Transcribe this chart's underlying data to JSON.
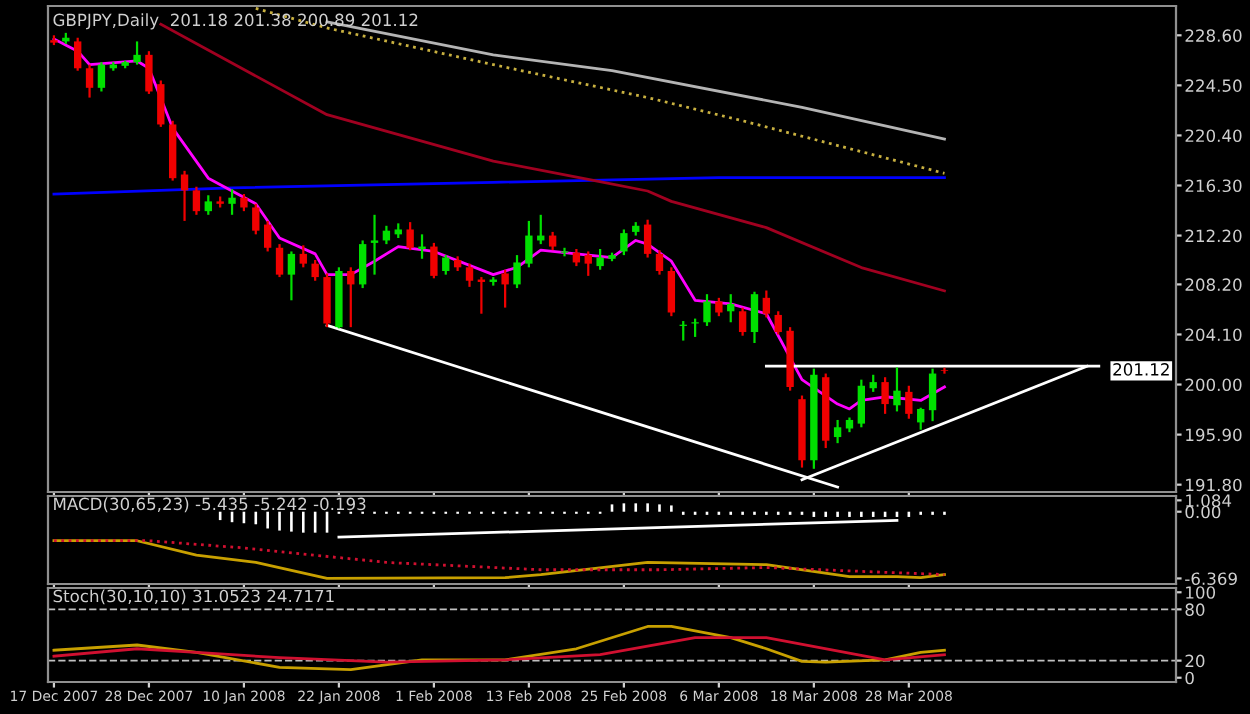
{
  "chart_data": [
    {
      "type": "candlestick",
      "title": "GBPJPY,Daily  201.18 201.38 200.89 201.12",
      "tick_labels": "y",
      "ohlc": [
        [
          228.2,
          228.6,
          227.8,
          228.0
        ],
        [
          228.1,
          228.8,
          227.9,
          228.4
        ],
        [
          228.1,
          228.4,
          225.7,
          225.9
        ],
        [
          225.9,
          226.2,
          223.5,
          224.3
        ],
        [
          224.3,
          226.4,
          224.0,
          226.2
        ],
        [
          225.9,
          226.4,
          225.7,
          226.2
        ],
        [
          226.1,
          226.5,
          225.9,
          226.4
        ],
        [
          226.4,
          228.1,
          226.2,
          227.0
        ],
        [
          227.0,
          227.3,
          223.8,
          224.0
        ],
        [
          224.6,
          224.9,
          221.1,
          221.3
        ],
        [
          221.3,
          221.6,
          216.7,
          216.9
        ],
        [
          217.2,
          217.5,
          213.4,
          215.9
        ],
        [
          215.9,
          216.2,
          213.9,
          214.2
        ],
        [
          214.2,
          215.5,
          213.9,
          215.0
        ],
        [
          215.0,
          215.4,
          214.5,
          214.8
        ],
        [
          214.8,
          216.0,
          213.9,
          215.3
        ],
        [
          215.3,
          215.6,
          214.2,
          214.5
        ],
        [
          214.5,
          214.8,
          212.3,
          212.6
        ],
        [
          213.1,
          213.4,
          210.9,
          211.2
        ],
        [
          211.2,
          211.5,
          208.8,
          209.0
        ],
        [
          209.0,
          210.9,
          206.9,
          210.7
        ],
        [
          210.7,
          211.4,
          209.6,
          209.9
        ],
        [
          209.9,
          210.2,
          208.5,
          208.8
        ],
        [
          208.8,
          209.1,
          204.7,
          205.0
        ],
        [
          204.7,
          209.6,
          204.6,
          209.3
        ],
        [
          209.3,
          209.6,
          204.7,
          208.2
        ],
        [
          208.2,
          211.8,
          207.9,
          211.5
        ],
        [
          211.6,
          213.9,
          209.0,
          211.8
        ],
        [
          211.8,
          213.0,
          211.5,
          212.6
        ],
        [
          212.3,
          213.2,
          212.0,
          212.7
        ],
        [
          212.7,
          213.3,
          211.0,
          211.2
        ],
        [
          211.1,
          212.3,
          210.3,
          211.3
        ],
        [
          211.3,
          211.6,
          208.7,
          208.9
        ],
        [
          209.3,
          210.6,
          209.0,
          210.4
        ],
        [
          210.2,
          210.5,
          209.3,
          209.6
        ],
        [
          209.6,
          209.9,
          208.0,
          208.5
        ],
        [
          208.6,
          208.8,
          205.8,
          208.4
        ],
        [
          208.4,
          208.8,
          208.1,
          208.6
        ],
        [
          209.1,
          209.4,
          206.3,
          208.2
        ],
        [
          208.2,
          210.6,
          207.9,
          210.0
        ],
        [
          209.9,
          213.4,
          209.6,
          212.2
        ],
        [
          211.8,
          213.9,
          211.5,
          212.2
        ],
        [
          212.2,
          212.5,
          211.0,
          211.3
        ],
        [
          210.8,
          211.2,
          210.5,
          210.9
        ],
        [
          210.8,
          211.1,
          209.7,
          210.0
        ],
        [
          210.6,
          210.9,
          208.9,
          209.9
        ],
        [
          209.7,
          211.1,
          209.4,
          210.4
        ],
        [
          210.3,
          210.8,
          210.1,
          210.6
        ],
        [
          210.9,
          212.7,
          210.6,
          212.4
        ],
        [
          212.5,
          213.3,
          212.2,
          213.0
        ],
        [
          213.1,
          213.5,
          210.4,
          210.7
        ],
        [
          210.7,
          211.0,
          209.0,
          209.3
        ],
        [
          209.3,
          209.6,
          205.6,
          205.9
        ],
        [
          204.8,
          205.2,
          203.6,
          204.9
        ],
        [
          205.0,
          205.4,
          203.9,
          205.1
        ],
        [
          205.1,
          207.4,
          204.8,
          206.8
        ],
        [
          206.8,
          207.1,
          205.6,
          205.9
        ],
        [
          206.0,
          207.4,
          205.1,
          206.6
        ],
        [
          206.0,
          206.3,
          204.0,
          204.3
        ],
        [
          204.3,
          207.6,
          203.4,
          207.4
        ],
        [
          207.1,
          207.7,
          205.5,
          205.8
        ],
        [
          205.7,
          206.0,
          204.1,
          204.3
        ],
        [
          204.4,
          204.7,
          199.5,
          199.8
        ],
        [
          198.8,
          199.1,
          193.2,
          193.8
        ],
        [
          193.8,
          201.3,
          193.1,
          200.8
        ],
        [
          200.6,
          200.9,
          194.8,
          195.4
        ],
        [
          195.7,
          197.1,
          195.2,
          196.5
        ],
        [
          196.4,
          197.3,
          196.1,
          197.1
        ],
        [
          196.8,
          200.4,
          196.5,
          199.9
        ],
        [
          199.7,
          200.8,
          199.4,
          200.2
        ],
        [
          200.2,
          200.6,
          197.6,
          198.4
        ],
        [
          198.3,
          201.4,
          197.8,
          199.5
        ],
        [
          199.4,
          199.9,
          197.2,
          197.6
        ],
        [
          196.9,
          198.1,
          196.3,
          198.0
        ],
        [
          197.9,
          201.3,
          197.0,
          200.9
        ],
        [
          201.18,
          201.38,
          200.89,
          201.12
        ],
        null,
        null,
        null,
        null,
        null,
        null,
        null,
        null,
        null,
        null,
        null,
        null,
        null,
        null,
        null,
        null,
        null,
        null,
        null
      ],
      "series": [
        {
          "type": "line",
          "color": "#b4b4b4",
          "values": [
            null,
            null,
            null,
            null,
            null,
            null,
            null,
            null,
            null,
            null,
            null,
            null,
            null,
            null,
            null,
            null,
            null,
            null,
            null,
            null,
            null,
            null,
            null,
            229.7,
            null,
            null,
            null,
            null,
            null,
            null,
            null,
            null,
            null,
            null,
            null,
            null,
            null,
            227.0,
            null,
            null,
            null,
            null,
            null,
            null,
            null,
            null,
            null,
            225.7,
            null,
            null,
            null,
            null,
            null,
            null,
            null,
            null,
            null,
            null,
            null,
            null,
            null,
            null,
            null,
            222.7,
            null,
            null,
            null,
            null,
            null,
            null,
            null,
            null,
            null,
            null,
            null,
            220.1,
            null,
            null,
            null,
            null,
            null,
            null,
            null,
            null,
            null,
            null,
            null,
            null,
            null,
            null,
            null,
            null,
            null,
            null,
            null
          ]
        },
        {
          "type": "line",
          "color": "#c8b040",
          "line_style": "dotted",
          "values": [
            null,
            null,
            null,
            null,
            null,
            null,
            null,
            null,
            null,
            null,
            null,
            null,
            null,
            null,
            null,
            null,
            null,
            230.8,
            null,
            null,
            null,
            null,
            null,
            229.2,
            null,
            null,
            null,
            null,
            null,
            null,
            null,
            null,
            null,
            null,
            null,
            null,
            null,
            226.2,
            null,
            null,
            null,
            null,
            null,
            null,
            null,
            null,
            null,
            null,
            null,
            null,
            223.5,
            null,
            null,
            null,
            null,
            null,
            null,
            null,
            221.6,
            null,
            null,
            null,
            null,
            null,
            null,
            null,
            null,
            null,
            null,
            null,
            null,
            null,
            null,
            null,
            null,
            217.3,
            null,
            null,
            null,
            null,
            null,
            null,
            null,
            null,
            null,
            null,
            null,
            null,
            null,
            null,
            null,
            null,
            null,
            null,
            null
          ]
        },
        {
          "type": "line",
          "color": "#0000ff",
          "values": [
            215.6,
            null,
            null,
            null,
            null,
            null,
            null,
            null,
            null,
            null,
            null,
            null,
            null,
            null,
            null,
            216.1,
            null,
            null,
            null,
            null,
            null,
            null,
            null,
            null,
            null,
            null,
            null,
            null,
            null,
            null,
            null,
            null,
            null,
            null,
            null,
            null,
            null,
            216.56,
            null,
            null,
            null,
            null,
            null,
            null,
            null,
            null,
            null,
            null,
            null,
            null,
            null,
            null,
            null,
            null,
            null,
            null,
            216.94,
            null,
            null,
            null,
            null,
            null,
            null,
            null,
            null,
            null,
            null,
            null,
            null,
            null,
            null,
            null,
            null,
            null,
            null,
            216.94,
            null,
            null,
            null,
            null,
            null,
            null,
            null,
            null,
            null,
            null,
            null,
            null,
            null,
            null,
            null,
            null,
            null,
            null,
            null
          ]
        },
        {
          "type": "line",
          "color": "#a00020",
          "values": [
            null,
            null,
            null,
            null,
            null,
            null,
            null,
            null,
            null,
            229.5,
            null,
            null,
            null,
            null,
            null,
            null,
            null,
            null,
            null,
            null,
            null,
            null,
            null,
            222.1,
            null,
            null,
            null,
            null,
            null,
            null,
            null,
            null,
            null,
            null,
            null,
            null,
            null,
            218.3,
            null,
            null,
            null,
            null,
            null,
            null,
            null,
            216.8,
            null,
            null,
            null,
            null,
            215.85,
            null,
            215.0,
            null,
            null,
            null,
            null,
            null,
            null,
            null,
            212.85,
            null,
            null,
            null,
            null,
            null,
            null,
            null,
            209.58,
            null,
            null,
            null,
            null,
            null,
            null,
            207.67,
            null,
            null,
            null,
            null,
            null,
            null,
            null,
            null,
            null,
            null,
            null,
            null,
            null,
            null,
            null,
            null,
            null,
            null,
            null
          ]
        },
        {
          "type": "line",
          "color": "#ff00ff",
          "values": [
            228.3,
            null,
            227.3,
            226.2,
            null,
            null,
            null,
            226.5,
            225.9,
            null,
            221.0,
            null,
            null,
            216.9,
            null,
            null,
            null,
            214.8,
            null,
            212.0,
            null,
            null,
            210.7,
            209.0,
            null,
            209.0,
            null,
            210.1,
            null,
            211.3,
            null,
            null,
            210.9,
            null,
            null,
            null,
            null,
            209.0,
            null,
            209.6,
            null,
            211.0,
            null,
            null,
            210.7,
            null,
            null,
            210.4,
            null,
            211.8,
            211.5,
            null,
            210.1,
            null,
            206.9,
            null,
            null,
            206.6,
            null,
            null,
            205.8,
            null,
            null,
            200.4,
            null,
            null,
            198.4,
            198.0,
            198.7,
            null,
            199.0,
            null,
            null,
            198.7,
            null,
            199.8,
            null,
            null,
            null,
            null,
            null,
            null,
            null,
            null,
            null,
            null,
            null,
            null,
            null,
            null,
            null,
            null,
            null,
            null,
            null
          ]
        },
        {
          "type": "line",
          "color": "#ffffff",
          "values": [
            null,
            null,
            null,
            null,
            null,
            null,
            null,
            null,
            null,
            null,
            null,
            null,
            null,
            null,
            null,
            null,
            null,
            null,
            null,
            null,
            null,
            null,
            null,
            204.84,
            null,
            null,
            null,
            null,
            null,
            null,
            null,
            null,
            null,
            null,
            null,
            null,
            null,
            null,
            null,
            null,
            null,
            null,
            null,
            null,
            null,
            null,
            null,
            null,
            null,
            null,
            null,
            null,
            null,
            null,
            null,
            null,
            null,
            null,
            null,
            null,
            null,
            null,
            null,
            null,
            null,
            null,
            191.6,
            null,
            null,
            null,
            null,
            null,
            null,
            null,
            null,
            null,
            null,
            null,
            null,
            null,
            null,
            null,
            null,
            null,
            null,
            null,
            null,
            null,
            null,
            null,
            null,
            null,
            null,
            null,
            null
          ]
        },
        {
          "type": "line",
          "color": "#ffffff",
          "values": [
            null,
            null,
            null,
            null,
            null,
            null,
            null,
            null,
            null,
            null,
            null,
            null,
            null,
            null,
            null,
            null,
            null,
            null,
            null,
            null,
            null,
            null,
            null,
            null,
            null,
            null,
            null,
            null,
            null,
            null,
            null,
            null,
            null,
            null,
            null,
            null,
            null,
            null,
            null,
            null,
            null,
            null,
            null,
            null,
            null,
            null,
            null,
            null,
            null,
            null,
            null,
            null,
            null,
            null,
            null,
            null,
            null,
            null,
            null,
            null,
            null,
            null,
            null,
            192.2,
            null,
            null,
            null,
            null,
            null,
            null,
            null,
            null,
            null,
            null,
            null,
            null,
            null,
            null,
            null,
            null,
            null,
            null,
            null,
            null,
            null,
            null,
            null,
            201.5,
            null,
            null,
            null,
            null,
            null,
            null,
            null
          ]
        },
        {
          "type": "line",
          "color": "#ffffff",
          "values": [
            null,
            null,
            null,
            null,
            null,
            null,
            null,
            null,
            null,
            null,
            null,
            null,
            null,
            null,
            null,
            null,
            null,
            null,
            null,
            null,
            null,
            null,
            null,
            null,
            null,
            null,
            null,
            null,
            null,
            null,
            null,
            null,
            null,
            null,
            null,
            null,
            null,
            null,
            null,
            null,
            null,
            null,
            null,
            null,
            null,
            null,
            null,
            null,
            null,
            null,
            null,
            null,
            null,
            null,
            null,
            null,
            null,
            null,
            null,
            null,
            201.5,
            null,
            null,
            null,
            null,
            null,
            null,
            null,
            null,
            null,
            null,
            null,
            null,
            null,
            null,
            null,
            null,
            null,
            null,
            null,
            null,
            null,
            null,
            null,
            null,
            null,
            null,
            null,
            201.5,
            null,
            null,
            null,
            null,
            null,
            null
          ]
        }
      ],
      "ylim": [
        191.2,
        231.0
      ],
      "yticks": [
        {
          "value": 191.8,
          "label": "191.80"
        },
        {
          "value": 195.9,
          "label": "195.90"
        },
        {
          "value": 200.0,
          "label": "200.00"
        },
        {
          "value": 204.1,
          "label": "204.10"
        },
        {
          "value": 208.2,
          "label": "208.20"
        },
        {
          "value": 212.2,
          "label": "212.20"
        },
        {
          "value": 216.3,
          "label": "216.30"
        },
        {
          "value": 220.4,
          "label": "220.40"
        },
        {
          "value": 224.5,
          "label": "224.50"
        },
        {
          "value": 228.6,
          "label": "228.60"
        }
      ],
      "annotations": [
        {
          "text": "201.12",
          "y": 201.12
        }
      ]
    },
    {
      "type": "line",
      "title": "MACD(30,65,23) -5.435 -5.242 -0.193",
      "tick_labels": "y",
      "series": [
        {
          "type": "bar",
          "color": "#ffffff",
          "values": [
            null,
            null,
            null,
            null,
            null,
            null,
            null,
            null,
            null,
            null,
            null,
            null,
            null,
            null,
            -0.8,
            -1.0,
            -1.1,
            -1.2,
            -1.6,
            -1.8,
            -1.9,
            -2.0,
            -2.0,
            -2.0,
            -0.2,
            -0.2,
            -0.2,
            -0.2,
            -0.2,
            -0.2,
            -0.2,
            -0.2,
            -0.2,
            -0.2,
            -0.2,
            -0.2,
            -0.2,
            -0.2,
            -0.2,
            -0.2,
            -0.2,
            -0.2,
            -0.2,
            -0.2,
            -0.2,
            -0.2,
            -0.2,
            0.7,
            0.8,
            0.8,
            0.8,
            0.7,
            0.6,
            -0.3,
            -0.3,
            -0.3,
            -0.3,
            -0.3,
            -0.3,
            -0.3,
            -0.3,
            -0.3,
            -0.3,
            -0.3,
            -0.5,
            -0.5,
            -0.5,
            -0.5,
            -0.5,
            -0.5,
            -0.5,
            -0.5,
            -0.5,
            -0.3,
            -0.3,
            -0.3,
            null,
            null,
            null,
            null,
            null,
            null,
            null,
            null,
            null,
            null,
            null,
            null,
            null,
            null,
            null,
            null,
            null,
            null,
            null
          ]
        },
        {
          "type": "line",
          "color": "#c8a000",
          "values": [
            -2.77,
            null,
            null,
            null,
            null,
            null,
            null,
            -2.77,
            null,
            null,
            null,
            null,
            -4.15,
            null,
            null,
            null,
            null,
            -4.84,
            null,
            null,
            null,
            null,
            null,
            -6.36,
            null,
            null,
            null,
            null,
            null,
            null,
            null,
            null,
            null,
            null,
            null,
            null,
            null,
            null,
            -6.3,
            null,
            null,
            -6.0,
            null,
            null,
            null,
            null,
            null,
            null,
            null,
            null,
            -4.84,
            null,
            null,
            null,
            null,
            null,
            null,
            null,
            null,
            null,
            -5.05,
            null,
            null,
            null,
            null,
            null,
            null,
            -6.2,
            null,
            null,
            null,
            -6.2,
            null,
            -6.3,
            null,
            -6.0,
            null,
            null,
            null,
            null,
            null,
            null,
            null,
            null,
            null,
            null,
            null,
            null,
            null,
            null,
            null,
            null,
            null,
            null,
            null
          ]
        },
        {
          "type": "line",
          "color": "#d01030",
          "line_style": "dotted",
          "values": [
            -2.77,
            null,
            null,
            null,
            null,
            null,
            null,
            null,
            -2.77,
            null,
            null,
            null,
            null,
            null,
            null,
            null,
            -3.46,
            null,
            null,
            null,
            null,
            null,
            null,
            null,
            null,
            null,
            null,
            null,
            -4.84,
            null,
            null,
            null,
            null,
            null,
            null,
            null,
            null,
            null,
            null,
            null,
            null,
            -5.54,
            null,
            null,
            null,
            null,
            null,
            null,
            null,
            null,
            null,
            -5.54,
            null,
            null,
            null,
            null,
            null,
            null,
            null,
            null,
            -5.33,
            null,
            null,
            null,
            null,
            null,
            null,
            null,
            null,
            -5.74,
            null,
            null,
            null,
            null,
            null,
            -6.0,
            null,
            null,
            null,
            null,
            null,
            null,
            null,
            null,
            null,
            null,
            null,
            null,
            null,
            null,
            null,
            null,
            null,
            null,
            null
          ]
        },
        {
          "type": "line",
          "color": "#ffffff",
          "values": [
            null,
            null,
            null,
            null,
            null,
            null,
            null,
            null,
            null,
            null,
            null,
            null,
            null,
            null,
            null,
            null,
            null,
            null,
            null,
            null,
            null,
            null,
            null,
            null,
            -2.42,
            null,
            null,
            null,
            null,
            null,
            null,
            null,
            null,
            null,
            null,
            null,
            null,
            null,
            null,
            null,
            null,
            null,
            null,
            null,
            null,
            null,
            null,
            null,
            null,
            null,
            null,
            null,
            null,
            null,
            null,
            null,
            null,
            null,
            null,
            null,
            null,
            null,
            null,
            null,
            null,
            null,
            null,
            null,
            null,
            null,
            null,
            -0.83,
            null,
            null,
            null,
            null,
            null,
            null,
            null,
            null,
            null,
            null,
            null,
            null,
            null,
            null,
            null,
            null,
            null,
            null,
            null,
            null,
            null,
            null,
            null
          ]
        }
      ],
      "ylim": [
        -6.9,
        1.5
      ],
      "yticks": [
        -6.369,
        {
          "value": 0,
          "label": "0.00"
        },
        1.084
      ]
    },
    {
      "type": "line",
      "title": "Stoch(30,10,10) 31.0523 24.7171",
      "categories": [
        "17 Dec 2007",
        null,
        null,
        null,
        null,
        null,
        null,
        null,
        "28 Dec 2007",
        null,
        null,
        null,
        null,
        null,
        null,
        null,
        "10 Jan 2008",
        null,
        null,
        null,
        null,
        null,
        null,
        null,
        "22 Jan 2008",
        null,
        null,
        null,
        null,
        null,
        null,
        null,
        "1 Feb 2008",
        null,
        null,
        null,
        null,
        null,
        null,
        null,
        "13 Feb 2008",
        null,
        null,
        null,
        null,
        null,
        null,
        null,
        "25 Feb 2008",
        null,
        null,
        null,
        null,
        null,
        null,
        null,
        "6 Mar 2008",
        null,
        null,
        null,
        null,
        null,
        null,
        null,
        "18 Mar 2008",
        null,
        null,
        null,
        null,
        null,
        null,
        null,
        "28 Mar 2008",
        null,
        null,
        null,
        null,
        null,
        null,
        null,
        null,
        null,
        null,
        null,
        null,
        null,
        null,
        null,
        null,
        null,
        null,
        null,
        null,
        null,
        null
      ],
      "series": [
        {
          "type": "line",
          "color": "#c8a000",
          "values": [
            32.2,
            null,
            null,
            null,
            null,
            null,
            null,
            38.3,
            null,
            null,
            null,
            null,
            29.6,
            null,
            null,
            null,
            null,
            null,
            null,
            12.2,
            null,
            null,
            null,
            null,
            null,
            9.6,
            null,
            null,
            null,
            null,
            null,
            20.9,
            null,
            null,
            null,
            null,
            null,
            null,
            20.9,
            null,
            null,
            null,
            null,
            null,
            33.9,
            null,
            null,
            null,
            null,
            null,
            60,
            null,
            60,
            null,
            null,
            null,
            null,
            47,
            null,
            null,
            33.9,
            null,
            null,
            19.1,
            null,
            18.3,
            null,
            null,
            null,
            null,
            20.9,
            null,
            null,
            29.6,
            null,
            32.2,
            null,
            null,
            null,
            null,
            null,
            null,
            null,
            null,
            null,
            null,
            null,
            null,
            null,
            null,
            null,
            null,
            null,
            null,
            null
          ]
        },
        {
          "type": "line",
          "color": "#d01030",
          "values": [
            25.2,
            null,
            null,
            null,
            null,
            null,
            null,
            33.9,
            null,
            null,
            null,
            null,
            29.6,
            null,
            null,
            null,
            null,
            null,
            null,
            23.5,
            null,
            null,
            null,
            null,
            null,
            null,
            null,
            null,
            18.3,
            null,
            null,
            null,
            null,
            null,
            null,
            null,
            null,
            null,
            20.9,
            null,
            null,
            null,
            null,
            null,
            null,
            null,
            27,
            null,
            null,
            null,
            null,
            null,
            null,
            null,
            47,
            null,
            null,
            null,
            null,
            null,
            47,
            null,
            null,
            null,
            null,
            null,
            null,
            null,
            null,
            null,
            20.9,
            null,
            null,
            null,
            null,
            27,
            null,
            null,
            null,
            null,
            null,
            null,
            null,
            null,
            null,
            null,
            null,
            null,
            null,
            null,
            null,
            null,
            null,
            null,
            null
          ]
        }
      ],
      "ylim": [
        -5,
        105
      ],
      "yticks": [
        0,
        20,
        80,
        100
      ],
      "ref_lines": [
        {
          "axis": "y",
          "value": 20,
          "color": "#c0c0c0",
          "line_style": "dashed"
        },
        {
          "axis": "y",
          "value": 80,
          "color": "#c0c0c0",
          "line_style": "dashed"
        }
      ]
    }
  ]
}
